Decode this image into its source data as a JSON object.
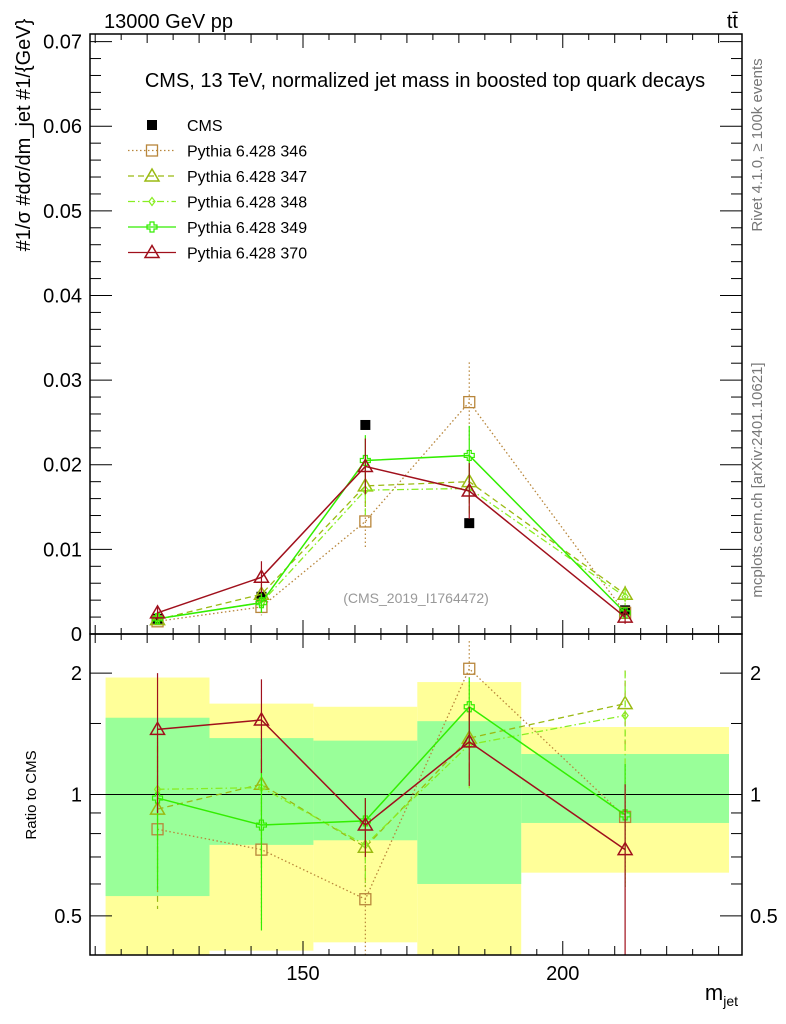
{
  "header": {
    "energy_label": "13000 GeV pp",
    "process_label": "tt̄",
    "side_label_top": "Rivet 4.1.0, ≥ 100k events",
    "side_label_bottom": "mcplots.cern.ch [arXiv:2401.10621]",
    "watermark": "(CMS_2019_I1764472)"
  },
  "chart_data": [
    {
      "type": "line",
      "title": "CMS, 13 TeV, normalized jet mass in boosted top quark decays",
      "xlabel": "m_jet",
      "ylabel": "#1/σ #dσ/dm_jet #1/{GeV}",
      "xlim": [
        109,
        234.5
      ],
      "ylim": [
        0,
        0.0709
      ],
      "yticks": [
        0,
        0.01,
        0.02,
        0.03,
        0.04,
        0.05,
        0.06,
        0.07
      ],
      "ytick_labels": [
        "0",
        "0.01",
        "0.02",
        "0.03",
        "0.04",
        "0.05",
        "0.06",
        "0.07"
      ],
      "legend_position": "top-left",
      "x": [
        122,
        142,
        162,
        182,
        212
      ],
      "bin_edges": [
        112,
        132,
        152,
        172,
        192,
        232
      ],
      "series": [
        {
          "name": "CMS",
          "color": "#000000",
          "marker": "filled-square",
          "line": "none",
          "values": [
            0.0018,
            0.0044,
            0.0247,
            0.0131,
            0.0028
          ]
        },
        {
          "name": "Pythia 6.428 346",
          "color": "#b8863b",
          "marker": "open-square",
          "line": "dotted",
          "values": [
            0.0015,
            0.0032,
            0.0133,
            0.0274,
            0.0025
          ],
          "errors": [
            0.0004,
            0.001,
            0.0033,
            0.0047,
            0.0005
          ]
        },
        {
          "name": "Pythia 6.428 347",
          "color": "#9aba12",
          "marker": "open-triangle",
          "line": "dashed",
          "values": [
            0.0017,
            0.0047,
            0.0175,
            0.018,
            0.0047
          ],
          "errors": [
            0.0005,
            0.0012,
            0.003,
            0.003,
            0.001
          ]
        },
        {
          "name": "Pythia 6.428 348",
          "color": "#88ee22",
          "marker": "open-diamond",
          "line": "dashdot",
          "values": [
            0.0018,
            0.0037,
            0.017,
            0.0172,
            0.0044
          ],
          "errors": [
            0.0005,
            0.0012,
            0.003,
            0.003,
            0.001
          ]
        },
        {
          "name": "Pythia 6.428 349",
          "color": "#33ee00",
          "marker": "open-cross",
          "line": "solid",
          "values": [
            0.0018,
            0.0037,
            0.0205,
            0.0211,
            0.0025
          ],
          "errors": [
            0.0005,
            0.0012,
            0.003,
            0.0035,
            0.0005
          ]
        },
        {
          "name": "Pythia 6.428 370",
          "color": "#a0101c",
          "marker": "open-triangle",
          "line": "solid",
          "values": [
            0.0025,
            0.0067,
            0.0198,
            0.0169,
            0.002
          ],
          "errors": [
            0.0008,
            0.0019,
            0.0033,
            0.0033,
            0.0008
          ]
        }
      ]
    },
    {
      "type": "line",
      "ylabel": "Ratio to CMS",
      "xlabel": "m_jet",
      "yscale": "log",
      "xlim": [
        109,
        234.5
      ],
      "ylim": [
        0.4,
        2.5
      ],
      "yticks": [
        0.5,
        1,
        2
      ],
      "ytick_labels": [
        "0.5",
        "1",
        "2"
      ],
      "xticks": [
        150,
        200
      ],
      "xtick_labels": [
        "150",
        "200"
      ],
      "x": [
        122,
        142,
        162,
        182,
        212
      ],
      "bin_edges": [
        112,
        132,
        152,
        172,
        192,
        232
      ],
      "bands": {
        "outer": {
          "color": "#ffff99",
          "low": [
            0.35,
            0.41,
            0.43,
            0.35,
            0.64
          ],
          "high": [
            1.95,
            1.68,
            1.65,
            1.9,
            1.47
          ]
        },
        "inner": {
          "color": "#99ff99",
          "low": [
            0.56,
            0.75,
            0.77,
            0.6,
            0.85
          ],
          "high": [
            1.55,
            1.38,
            1.36,
            1.52,
            1.26
          ]
        }
      },
      "series": [
        {
          "name": "Pythia 6.428 346",
          "values": [
            0.82,
            0.73,
            0.55,
            2.05,
            0.88
          ],
          "errors": [
            0.25,
            0.25,
            0.18,
            0.35,
            0.3
          ]
        },
        {
          "name": "Pythia 6.428 347",
          "values": [
            0.92,
            1.06,
            0.74,
            1.38,
            1.68
          ],
          "errors": [
            0.4,
            0.4,
            0.15,
            0.3,
            0.35
          ]
        },
        {
          "name": "Pythia 6.428 348",
          "values": [
            1.03,
            1.04,
            0.75,
            1.33,
            1.57
          ],
          "errors": [
            0.4,
            0.4,
            0.15,
            0.3,
            0.45
          ]
        },
        {
          "name": "Pythia 6.428 349",
          "values": [
            0.98,
            0.84,
            0.86,
            1.65,
            0.89
          ],
          "errors": [
            0.4,
            0.38,
            0.12,
            0.3,
            0.3
          ]
        },
        {
          "name": "Pythia 6.428 370",
          "values": [
            1.45,
            1.53,
            0.84,
            1.35,
            0.73
          ],
          "errors": [
            0.55,
            0.4,
            0.14,
            0.3,
            0.33
          ]
        }
      ]
    }
  ]
}
